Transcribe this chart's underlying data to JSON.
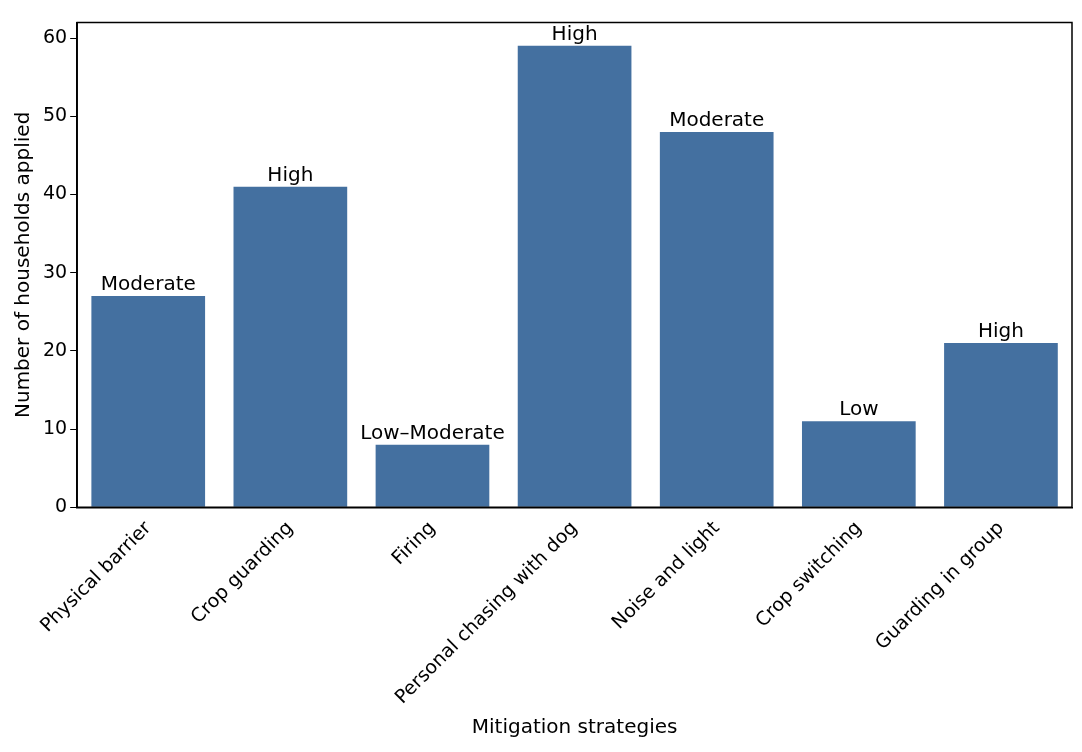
{
  "chart_data": {
    "type": "bar",
    "xlabel": "Mitigation strategies",
    "ylabel": "Number of households applied",
    "categories": [
      "Physical barrier",
      "Crop guarding",
      "Firing",
      "Personal chasing with dog",
      "Noise and light",
      "Crop switching",
      "Guarding in group"
    ],
    "values": [
      27,
      41,
      8,
      59,
      48,
      11,
      21
    ],
    "value_labels": [
      "Moderate",
      "High",
      "Low–Moderate",
      "High",
      "Moderate",
      "Low",
      "High"
    ],
    "color": "#4470a0",
    "ylim": [
      0,
      62
    ],
    "yticks": [
      0,
      10,
      20,
      30,
      40,
      50,
      60
    ],
    "grid": false,
    "legend": false
  }
}
